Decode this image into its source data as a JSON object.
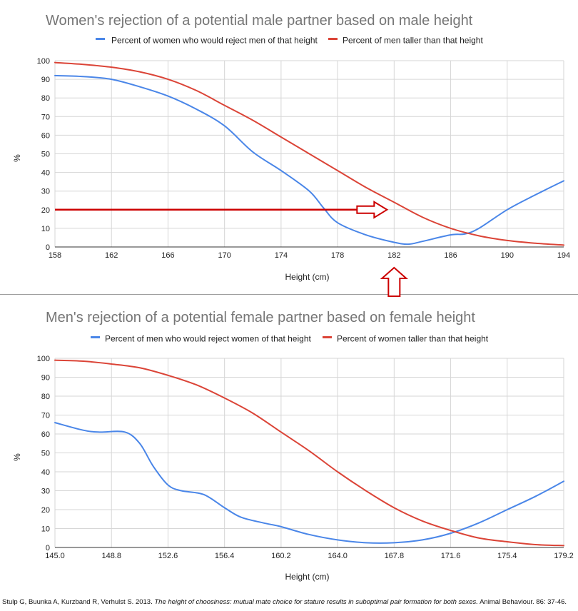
{
  "chart_data": [
    {
      "type": "line",
      "title": "Women's rejection of a potential male partner based on male height",
      "xlabel": "Height (cm)",
      "ylabel": "%",
      "xlim": [
        158,
        194
      ],
      "ylim": [
        0,
        100
      ],
      "x_ticks": [
        "158",
        "162",
        "166",
        "170",
        "174",
        "178",
        "182",
        "186",
        "190",
        "194"
      ],
      "y_ticks": [
        "0",
        "10",
        "20",
        "30",
        "40",
        "50",
        "60",
        "70",
        "80",
        "90",
        "100"
      ],
      "grid": true,
      "legend_position": "top",
      "series": [
        {
          "name": "Percent of women who would reject men of that height",
          "color": "#4a86e8",
          "x": [
            158,
            160,
            162,
            164,
            166,
            168,
            170,
            172,
            174,
            176,
            177,
            178,
            180,
            182,
            183,
            184,
            186,
            187,
            188,
            190,
            192,
            194
          ],
          "y": [
            92,
            91.5,
            90,
            86,
            81,
            74,
            65,
            51,
            41,
            30,
            21,
            13,
            6.5,
            2.5,
            1.5,
            3,
            6.5,
            7,
            10,
            20,
            28,
            35.5
          ]
        },
        {
          "name": "Percent of men taller than that height",
          "color": "#db4437",
          "x": [
            158,
            160,
            162,
            164,
            166,
            168,
            170,
            172,
            174,
            176,
            178,
            180,
            182,
            184,
            186,
            188,
            190,
            192,
            194
          ],
          "y": [
            99,
            98,
            96.5,
            94,
            90,
            84,
            76,
            68,
            59,
            50,
            41,
            32,
            24,
            16,
            10,
            6,
            3.5,
            2,
            1
          ]
        }
      ],
      "annotations": [
        {
          "type": "horizontal-arrow",
          "color": "#cc0000",
          "y": 20,
          "x_start": 158,
          "x_end": 182
        },
        {
          "type": "up-arrow",
          "color": "#cc0000",
          "x": 182,
          "position": "below-axis"
        }
      ]
    },
    {
      "type": "line",
      "title": "Men's rejection of a potential female partner based on female height",
      "xlabel": "Height (cm)",
      "ylabel": "%",
      "xlim": [
        145,
        179.2
      ],
      "ylim": [
        0,
        100
      ],
      "x_ticks": [
        "145.0",
        "148.8",
        "152.6",
        "156.4",
        "160.2",
        "164.0",
        "167.8",
        "171.6",
        "175.4",
        "179.2"
      ],
      "y_ticks": [
        "0",
        "10",
        "20",
        "30",
        "40",
        "50",
        "60",
        "70",
        "80",
        "90",
        "100"
      ],
      "grid": true,
      "legend_position": "top",
      "series": [
        {
          "name": "Percent of men who would reject women of that height",
          "color": "#4a86e8",
          "x": [
            145,
            146.9,
            148,
            149.7,
            150.7,
            151.6,
            152.6,
            153.5,
            155,
            156.4,
            157.5,
            159,
            160.2,
            162,
            164,
            165.9,
            167.8,
            169.7,
            171.6,
            173.5,
            175.4,
            177.3,
            179.2
          ],
          "y": [
            66,
            62,
            61,
            61,
            55,
            43,
            33,
            30,
            28,
            21,
            16,
            13,
            11,
            7,
            4,
            2.5,
            2.5,
            4,
            7.5,
            13,
            20,
            27,
            35
          ]
        },
        {
          "name": "Percent of women taller than that height",
          "color": "#db4437",
          "x": [
            145,
            146.9,
            148.8,
            150.7,
            152.6,
            154.5,
            156.4,
            158.3,
            160.2,
            162.1,
            164,
            165.9,
            167.8,
            169.7,
            171.6,
            173.5,
            175.4,
            177.3,
            179.2
          ],
          "y": [
            99,
            98.5,
            97,
            95,
            91,
            86,
            79,
            71,
            61,
            51,
            40,
            30,
            21,
            14,
            9,
            5,
            3,
            1.5,
            1
          ]
        }
      ]
    }
  ],
  "citation": {
    "authors": "Stulp G, Buunka A, Kurzband R, Verhulst S. 2013.",
    "title": "The height of choosiness: mutual mate choice for stature results in suboptimal pair formation for both sexes.",
    "journal": "Animal Behaviour. 86: 37-46."
  }
}
